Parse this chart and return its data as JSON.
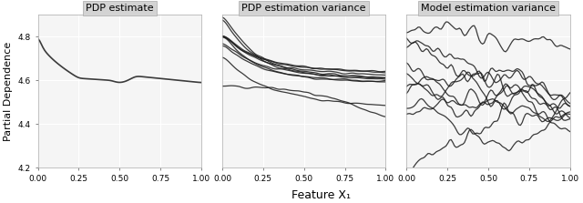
{
  "title1": "PDP estimate",
  "title2": "PDP estimation variance",
  "title3": "Model estimation variance",
  "xlabel": "Feature X₁",
  "ylabel": "Partial Dependence",
  "xlim": [
    0.0,
    1.0
  ],
  "ylim": [
    4.2,
    4.9
  ],
  "xticks": [
    0.0,
    0.25,
    0.5,
    0.75,
    1.0
  ],
  "yticks": [
    4.2,
    4.4,
    4.6,
    4.8
  ],
  "background_color": "#ffffff",
  "panel_bg": "#f5f5f5",
  "title_bg": "#d3d3d3",
  "grid_color": "#ffffff",
  "line_color": "#1a1a1a",
  "seed": 42
}
